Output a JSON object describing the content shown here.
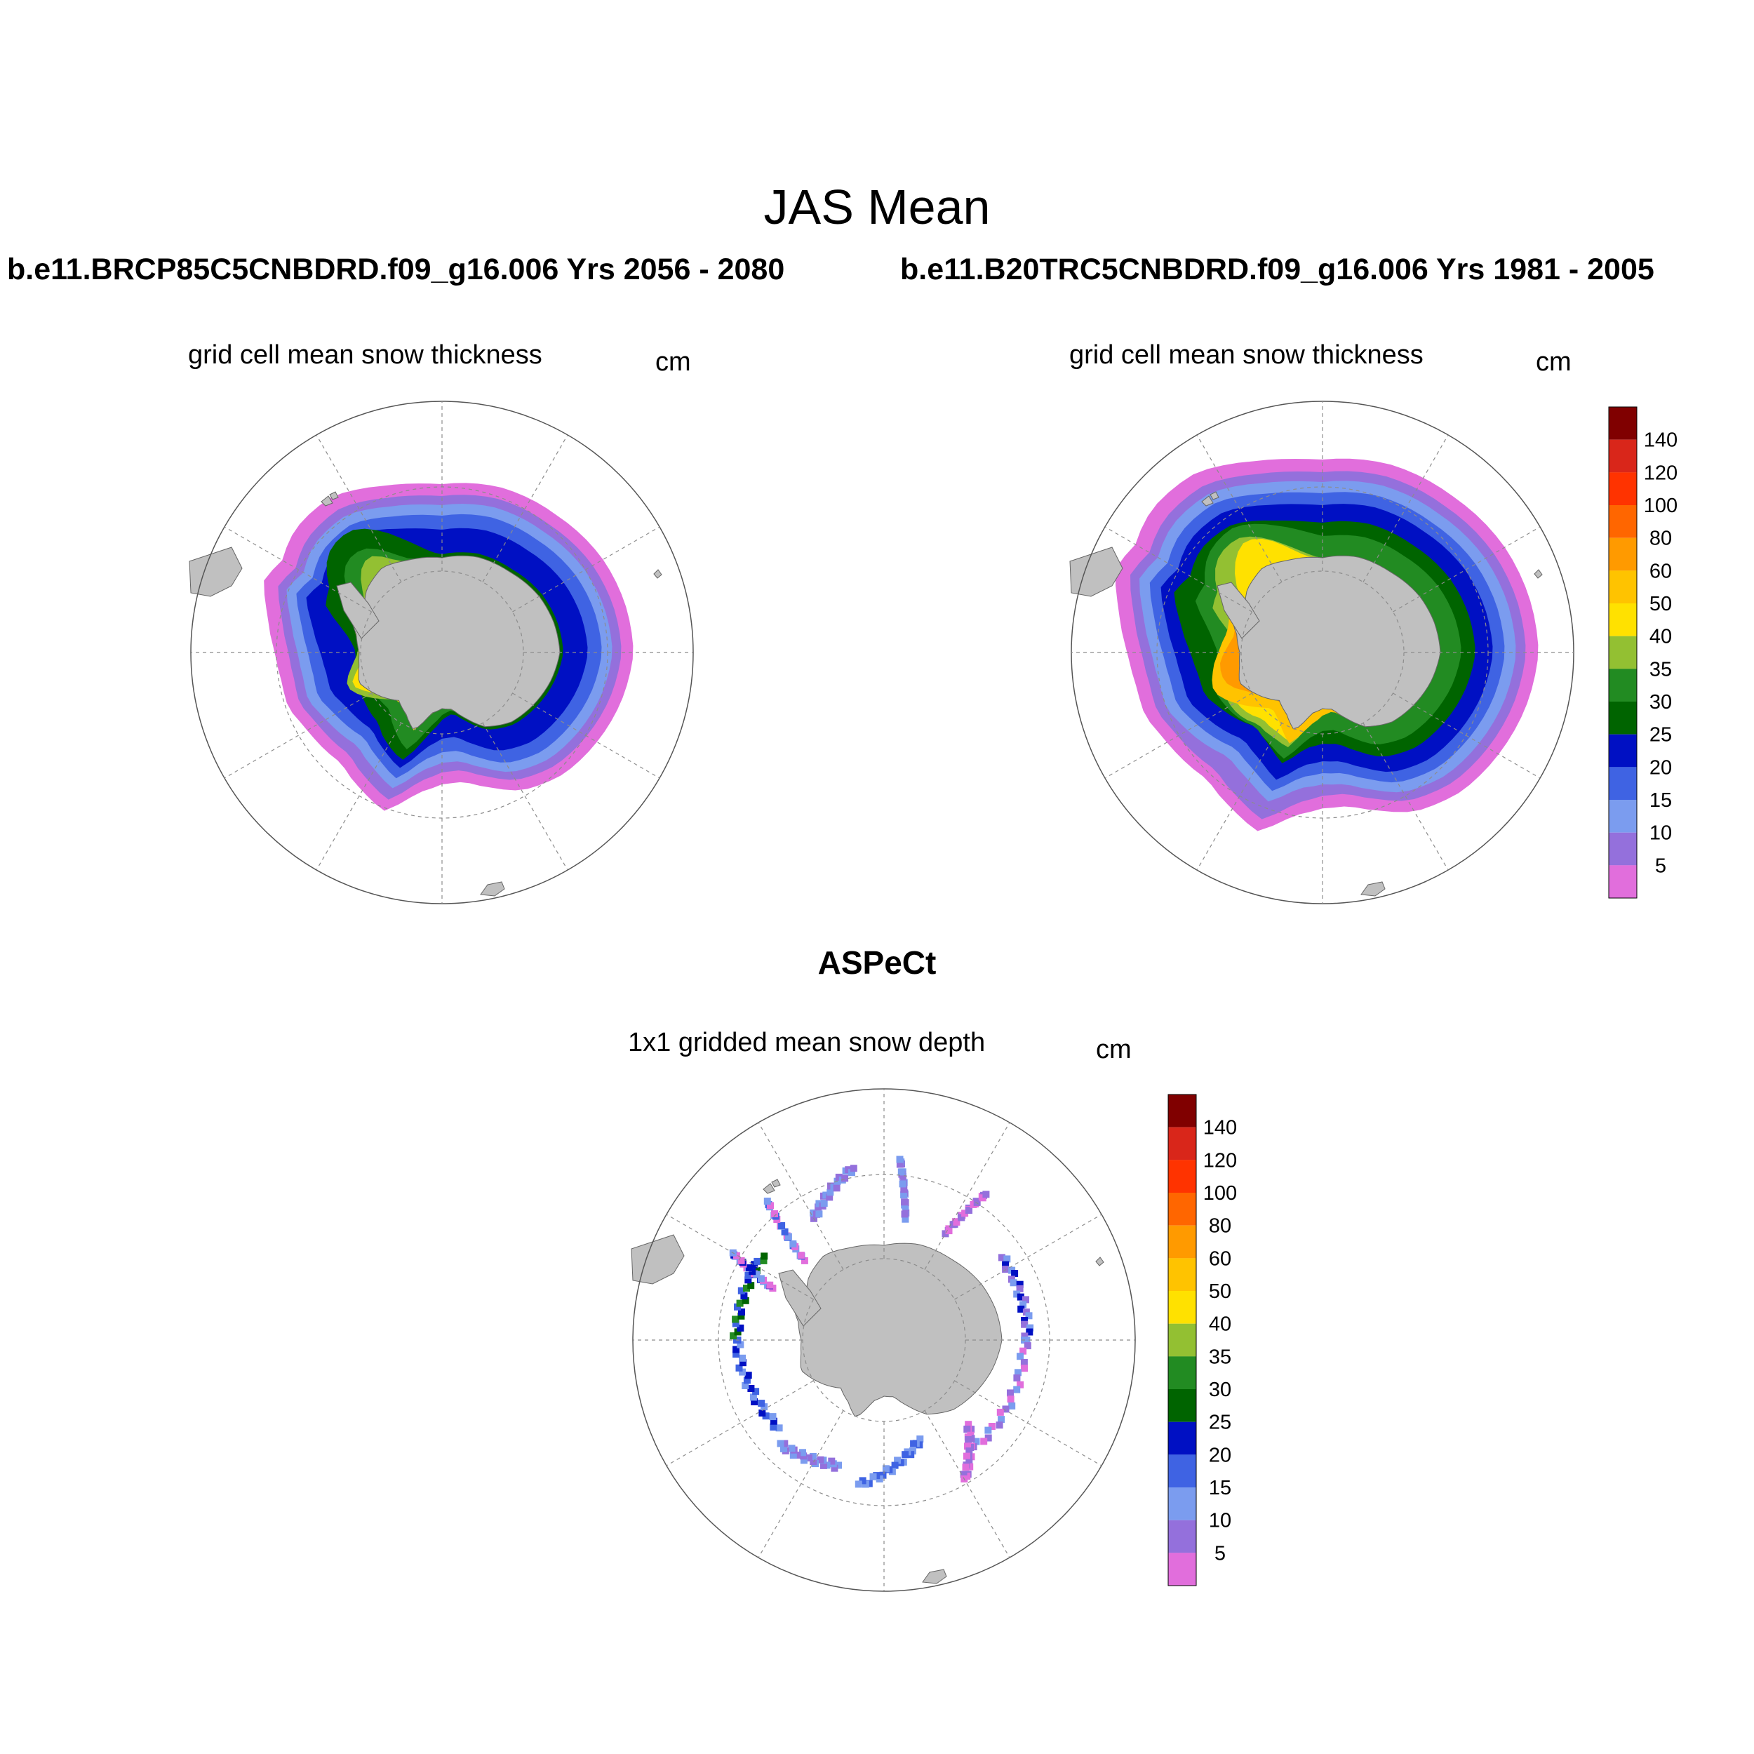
{
  "figure": {
    "title": "JAS Mean",
    "left_run": "b.e11.BRCP85C5CNBDRD.f09_g16.006  Yrs 2056 - 2080",
    "right_run": "b.e11.B20TRC5CNBDRD.f09_g16.006  Yrs 1981 - 2005",
    "obs_title": "ASPeCt"
  },
  "panels": [
    {
      "title": "grid cell mean snow thickness",
      "units": "cm"
    },
    {
      "title": "grid cell mean snow thickness",
      "units": "cm"
    },
    {
      "title": "1x1 gridded mean snow depth",
      "units": "cm"
    }
  ],
  "colorbar": {
    "levels": [
      "5",
      "10",
      "15",
      "20",
      "25",
      "30",
      "35",
      "40",
      "50",
      "60",
      "80",
      "100",
      "120",
      "140"
    ],
    "colors": [
      "#e16edc",
      "#9470dc",
      "#7b9cef",
      "#3f63e3",
      "#0010c3",
      "#006400",
      "#228b22",
      "#93c032",
      "#ffe100",
      "#ffc300",
      "#ff9a00",
      "#ff6600",
      "#ff3300",
      "#d9261a",
      "#800000"
    ]
  },
  "map_style": {
    "land_color": "#c0c0c0",
    "grid_color": "#8c8c8c"
  }
}
